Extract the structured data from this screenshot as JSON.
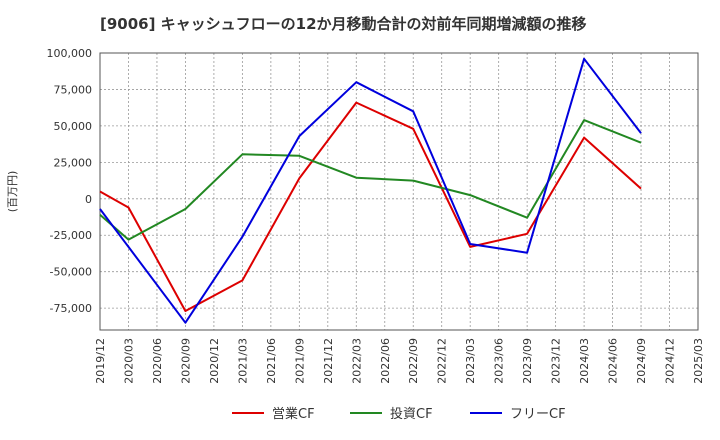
{
  "chart_data": {
    "type": "line",
    "title": "[9006]  キャッシュフローの12か月移動合計の対前年同期増減額の推移",
    "xlabel": "",
    "ylabel": "(百万円)",
    "ylim": [
      -90000,
      100000
    ],
    "y_ticks": [
      100000,
      75000,
      50000,
      25000,
      0,
      -25000,
      -50000,
      -75000
    ],
    "y_tick_labels": [
      "100,000",
      "75,000",
      "50,000",
      "25,000",
      "0",
      "-25,000",
      "-50,000",
      "-75,000"
    ],
    "x_tick_labels": [
      "2019/12",
      "2020/03",
      "2020/06",
      "2020/09",
      "2020/12",
      "2021/03",
      "2021/06",
      "2021/09",
      "2021/12",
      "2022/03",
      "2022/06",
      "2022/09",
      "2022/12",
      "2023/03",
      "2023/06",
      "2023/09",
      "2023/12",
      "2024/03",
      "2024/06",
      "2024/09",
      "2024/12",
      "2025/03"
    ],
    "grid": true,
    "legend_position": "bottom",
    "series": [
      {
        "name": "営業CF",
        "color": "#dd0000",
        "x": [
          "2019/12",
          "2020/03",
          "2020/09",
          "2021/03",
          "2021/09",
          "2022/03",
          "2022/09",
          "2023/03",
          "2023/09",
          "2024/03",
          "2024/09"
        ],
        "values": [
          5000,
          -6000,
          -77000,
          -56000,
          14000,
          66000,
          48000,
          -33000,
          -24000,
          42000,
          7000
        ]
      },
      {
        "name": "投資CF",
        "color": "#228822",
        "x": [
          "2019/12",
          "2020/03",
          "2020/09",
          "2021/03",
          "2021/09",
          "2022/03",
          "2022/09",
          "2023/03",
          "2023/09",
          "2024/03",
          "2024/09"
        ],
        "values": [
          -11000,
          -28000,
          -7000,
          30500,
          29500,
          14500,
          12500,
          2500,
          -13000,
          54000,
          38500
        ]
      },
      {
        "name": "フリーCF",
        "color": "#0000dd",
        "x": [
          "2019/12",
          "2020/03",
          "2020/09",
          "2021/03",
          "2021/09",
          "2022/03",
          "2022/09",
          "2023/03",
          "2023/09",
          "2024/03",
          "2024/09"
        ],
        "values": [
          -7000,
          -33000,
          -85000,
          -26000,
          43000,
          80000,
          60000,
          -31000,
          -37000,
          96000,
          45000
        ]
      }
    ]
  }
}
